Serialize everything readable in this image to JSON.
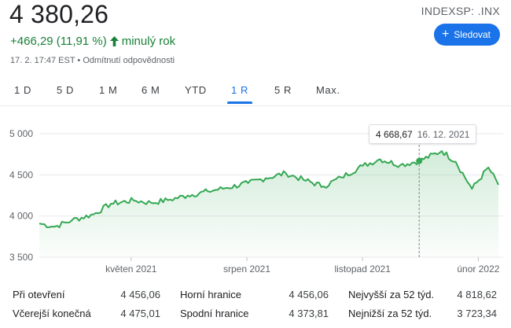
{
  "header": {
    "price": "4 380,26",
    "change": "+466,29 (11,91 %)",
    "change_period": "minulý rok",
    "meta": "17. 2. 17:47 EST • Odmítnutí odpovědnosti",
    "ticker": "INDEXSP: .INX",
    "follow_label": "Sledovat",
    "accent_color": "#1a73e8",
    "positive_color": "#188038"
  },
  "tabs": [
    {
      "label": "1 D",
      "active": false
    },
    {
      "label": "5 D",
      "active": false
    },
    {
      "label": "1 M",
      "active": false
    },
    {
      "label": "6 M",
      "active": false
    },
    {
      "label": "YTD",
      "active": false
    },
    {
      "label": "1 R",
      "active": true
    },
    {
      "label": "5 R",
      "active": false
    },
    {
      "label": "Max.",
      "active": false
    }
  ],
  "tooltip": {
    "value": "4 668,67",
    "date": "16. 12. 2021"
  },
  "chart_data": {
    "type": "area",
    "color": "#34a853",
    "y_ticks": [
      "5 000",
      "4 500",
      "4 000",
      "3 500"
    ],
    "y_tick_values": [
      5000,
      4500,
      4000,
      3500
    ],
    "ylim": [
      3500,
      5000
    ],
    "x_ticks": [
      "květen 2021",
      "srpen 2021",
      "listopad 2021",
      "únor 2022"
    ],
    "x": [
      "2021-02-17",
      "2021-03-01",
      "2021-03-15",
      "2021-04-01",
      "2021-04-15",
      "2021-05-03",
      "2021-05-17",
      "2021-06-01",
      "2021-06-15",
      "2021-07-01",
      "2021-07-15",
      "2021-08-02",
      "2021-08-16",
      "2021-09-01",
      "2021-09-15",
      "2021-10-01",
      "2021-10-15",
      "2021-11-01",
      "2021-11-15",
      "2021-12-01",
      "2021-12-16",
      "2022-01-03",
      "2022-01-14",
      "2022-01-27",
      "2022-02-09",
      "2022-02-17"
    ],
    "values": [
      3910,
      3870,
      3950,
      4020,
      4150,
      4190,
      4160,
      4200,
      4250,
      4300,
      4340,
      4400,
      4460,
      4520,
      4440,
      4360,
      4470,
      4610,
      4690,
      4620,
      4669,
      4790,
      4660,
      4330,
      4590,
      4380
    ],
    "marker": {
      "x": "2021-12-16",
      "value": 4669
    }
  },
  "stats": [
    [
      {
        "label": "Při otevření",
        "value": "4 456,06"
      },
      {
        "label": "Horní hranice",
        "value": "4 456,06"
      },
      {
        "label": "Nejvyšší za 52 týd.",
        "value": "4 818,62"
      }
    ],
    [
      {
        "label": "Včerejší konečná",
        "value": "4 475,01"
      },
      {
        "label": "Spodní hranice",
        "value": "4 373,81"
      },
      {
        "label": "Nejnižší za 52 týd.",
        "value": "3 723,34"
      }
    ]
  ]
}
